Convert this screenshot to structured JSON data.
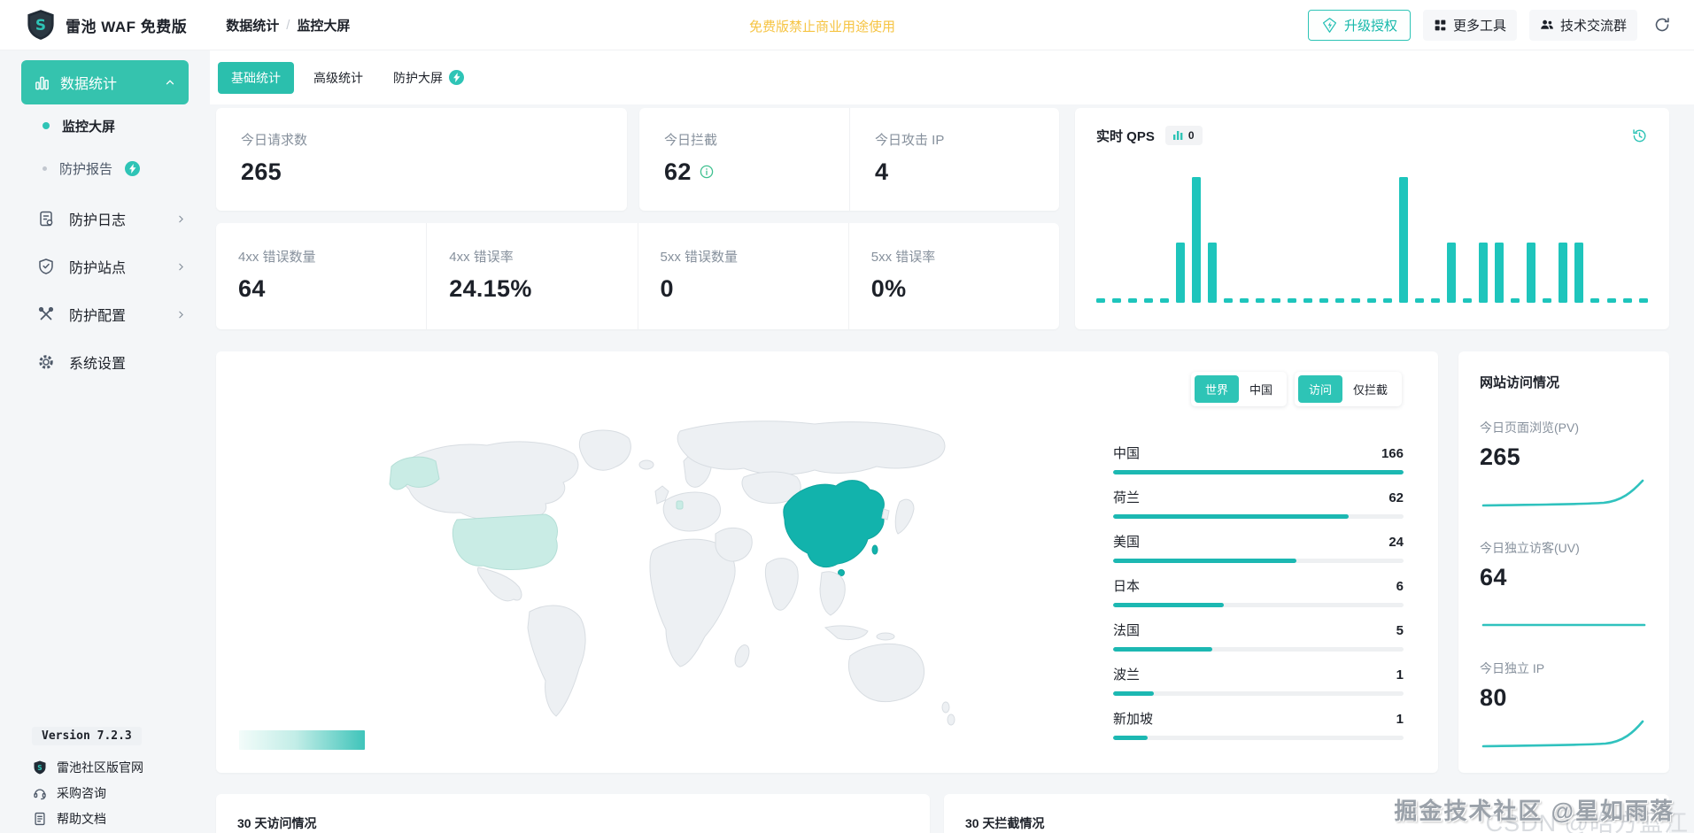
{
  "brand": {
    "name": "雷池 WAF 免费版"
  },
  "breadcrumb": {
    "section": "数据统计",
    "sep": "/",
    "page": "监控大屏"
  },
  "header": {
    "notice": "免费版禁止商业用途使用",
    "upgrade": "升级授权",
    "more_tools": "更多工具",
    "community": "技术交流群"
  },
  "colors": {
    "accent": "#2ec4b6",
    "warning": "#f6c443"
  },
  "sidebar": {
    "items": [
      {
        "label": "数据统计"
      },
      {
        "label": "监控大屏"
      },
      {
        "label": "防护报告"
      },
      {
        "label": "防护日志"
      },
      {
        "label": "防护站点"
      },
      {
        "label": "防护配置"
      },
      {
        "label": "系统设置"
      }
    ],
    "footer": {
      "version": "Version 7.2.3",
      "links": [
        "雷池社区版官网",
        "采购咨询",
        "帮助文档"
      ]
    }
  },
  "tabs": [
    {
      "label": "基础统计"
    },
    {
      "label": "高级统计"
    },
    {
      "label": "防护大屏"
    }
  ],
  "stats": {
    "requests": {
      "label": "今日请求数",
      "value": "265"
    },
    "blocked": {
      "label": "今日拦截",
      "value": "62"
    },
    "attack_ip": {
      "label": "今日攻击 IP",
      "value": "4"
    },
    "err4xx_count": {
      "label": "4xx 错误数量",
      "value": "64"
    },
    "err4xx_rate": {
      "label": "4xx 错误率",
      "value": "24.15%"
    },
    "err5xx_count": {
      "label": "5xx 错误数量",
      "value": "0"
    },
    "err5xx_rate": {
      "label": "5xx 错误率",
      "value": "0%"
    }
  },
  "qps": {
    "title": "实时 QPS",
    "badge": "0",
    "bars": [
      0,
      0,
      0,
      0,
      0,
      48,
      100,
      48,
      0,
      0,
      0,
      0,
      0,
      0,
      0,
      0,
      0,
      0,
      0,
      100,
      0,
      0,
      48,
      0,
      48,
      48,
      0,
      48,
      0,
      48,
      48,
      0,
      0,
      0,
      0
    ]
  },
  "map": {
    "toggle_region": [
      "世界",
      "中国"
    ],
    "toggle_mode": [
      "访问",
      "仅拦截"
    ],
    "countries": [
      {
        "name": "中国",
        "value": 166,
        "pct": 100
      },
      {
        "name": "荷兰",
        "value": 62,
        "pct": 81
      },
      {
        "name": "美国",
        "value": 24,
        "pct": 63
      },
      {
        "name": "日本",
        "value": 6,
        "pct": 38
      },
      {
        "name": "法国",
        "value": 5,
        "pct": 34
      },
      {
        "name": "波兰",
        "value": 1,
        "pct": 14
      },
      {
        "name": "新加坡",
        "value": 1,
        "pct": 12
      }
    ]
  },
  "visits": {
    "title": "网站访问情况",
    "pv": {
      "label": "今日页面浏览(PV)",
      "value": "265"
    },
    "uv": {
      "label": "今日独立访客(UV)",
      "value": "64"
    },
    "ip": {
      "label": "今日独立 IP",
      "value": "80"
    }
  },
  "bottom": {
    "visits30": "30 天访问情况",
    "blocks30": "30 天拦截情况"
  },
  "watermark": {
    "line1": "掘金技术社区 @星如雨落",
    "line2": "CSDN @皓方蓝江"
  }
}
